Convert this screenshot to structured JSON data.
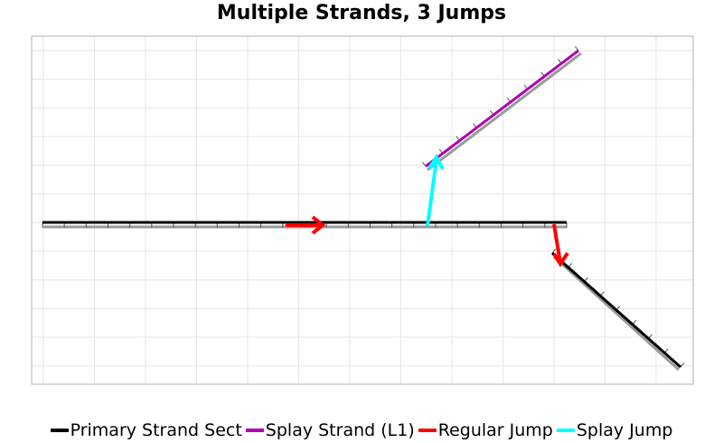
{
  "title": "Multiple Strands, 3 Jumps",
  "colors": {
    "primary": "#000000",
    "splay": "#b000b0",
    "regular_jump": "#ff0000",
    "splay_jump": "#00ffff",
    "shadow": "#9a9a9a",
    "grid": "#e6e6e6",
    "frame": "#b0b0b0"
  },
  "legend": [
    {
      "label": "Primary Strand Sect",
      "color": "#000000"
    },
    {
      "label": "Splay Strand (L1)",
      "color": "#b000b0"
    },
    {
      "label": "Regular Jump",
      "color": "#ff0000"
    },
    {
      "label": "Splay Jump",
      "color": "#00ffff"
    }
  ]
}
